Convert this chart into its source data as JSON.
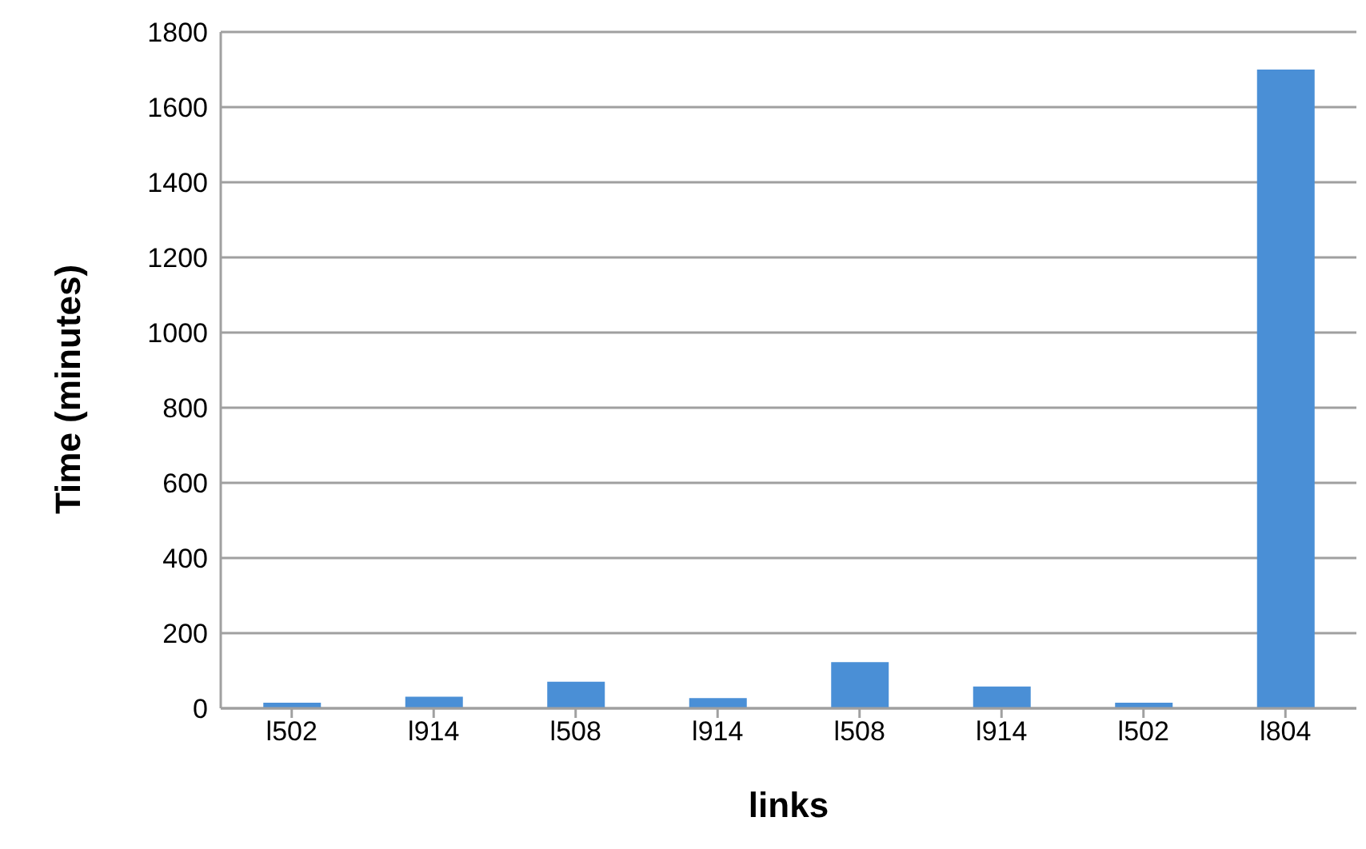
{
  "chart_data": {
    "type": "bar",
    "xlabel": "links",
    "ylabel": "Time (minutes)",
    "categories": [
      "l502",
      "l914",
      "l508",
      "l914",
      "l508",
      "l914",
      "l502",
      "l804"
    ],
    "values": [
      15,
      31,
      71,
      27,
      123,
      58,
      15,
      1700
    ],
    "color": "#4a8fd6",
    "ylim": [
      0,
      1800
    ],
    "yticks": [
      0,
      200,
      400,
      600,
      800,
      1000,
      1200,
      1400,
      1600,
      1800
    ],
    "grid": "y"
  }
}
